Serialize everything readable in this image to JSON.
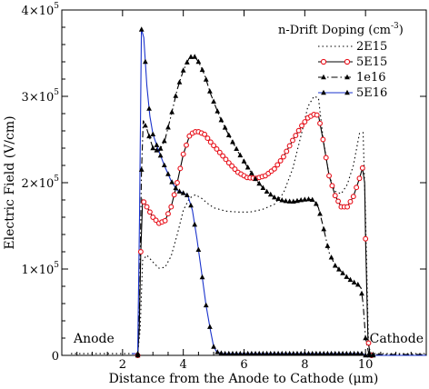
{
  "chart_data": {
    "type": "line",
    "xlabel": "Distance from the Anode to Cathode (μm)",
    "ylabel": "Electric Field (V/cm)",
    "xlim": [
      0,
      12
    ],
    "ylim": [
      0,
      400000
    ],
    "x_ticks": [
      2,
      4,
      6,
      8,
      10
    ],
    "y_ticks": [
      {
        "value": 0,
        "mantissa": "0",
        "exp": ""
      },
      {
        "value": 100000,
        "mantissa": "1×10",
        "exp": "5"
      },
      {
        "value": 200000,
        "mantissa": "2×10",
        "exp": "5"
      },
      {
        "value": 300000,
        "mantissa": "3×10",
        "exp": "5"
      },
      {
        "value": 400000,
        "mantissa": "4×10",
        "exp": "5"
      }
    ],
    "grid": false,
    "legend": {
      "title": "n-Drift Doping (cm",
      "title_sup": "-3",
      "title_close": ")",
      "position": "top-right"
    },
    "annotations": {
      "left": "Anode",
      "right": "Cathode"
    },
    "series": [
      {
        "name": "2E15",
        "color": "#000000",
        "dash": "1.5,3",
        "marker": "none",
        "points": [
          [
            0.3,
            2000
          ],
          [
            2.3,
            2000
          ],
          [
            2.5,
            2000
          ],
          [
            2.58,
            30000
          ],
          [
            2.66,
            110000
          ],
          [
            2.8,
            116000
          ],
          [
            3.0,
            108000
          ],
          [
            3.2,
            101000
          ],
          [
            3.4,
            102000
          ],
          [
            3.6,
            115000
          ],
          [
            3.8,
            140000
          ],
          [
            4.0,
            168000
          ],
          [
            4.2,
            182000
          ],
          [
            4.4,
            186000
          ],
          [
            4.6,
            182000
          ],
          [
            4.8,
            176000
          ],
          [
            5.0,
            171000
          ],
          [
            5.4,
            167000
          ],
          [
            5.8,
            166000
          ],
          [
            6.2,
            166000
          ],
          [
            6.6,
            169000
          ],
          [
            7.0,
            175000
          ],
          [
            7.3,
            188000
          ],
          [
            7.6,
            216000
          ],
          [
            7.9,
            258000
          ],
          [
            8.1,
            288000
          ],
          [
            8.3,
            300000
          ],
          [
            8.45,
            298000
          ],
          [
            8.6,
            252000
          ],
          [
            8.8,
            208000
          ],
          [
            9.0,
            190000
          ],
          [
            9.2,
            187000
          ],
          [
            9.4,
            198000
          ],
          [
            9.6,
            220000
          ],
          [
            9.8,
            257000
          ],
          [
            9.92,
            258000
          ],
          [
            10.0,
            160000
          ],
          [
            10.1,
            10000
          ],
          [
            10.2,
            2000
          ],
          [
            12.0,
            2000
          ]
        ]
      },
      {
        "name": "5E15",
        "color": "#000000",
        "dash": "",
        "marker": "circle",
        "points": [
          [
            2.3,
            0
          ],
          [
            2.5,
            0
          ],
          [
            2.55,
            30000
          ],
          [
            2.6,
            120000
          ],
          [
            2.66,
            180000
          ],
          [
            2.8,
            172000
          ],
          [
            3.0,
            160000
          ],
          [
            3.2,
            153000
          ],
          [
            3.4,
            156000
          ],
          [
            3.6,
            172000
          ],
          [
            3.8,
            200000
          ],
          [
            4.0,
            233000
          ],
          [
            4.2,
            254000
          ],
          [
            4.35,
            259000
          ],
          [
            4.5,
            259000
          ],
          [
            4.7,
            256000
          ],
          [
            4.9,
            247000
          ],
          [
            5.2,
            235000
          ],
          [
            5.5,
            223000
          ],
          [
            5.8,
            212000
          ],
          [
            6.1,
            206000
          ],
          [
            6.4,
            205000
          ],
          [
            6.7,
            208000
          ],
          [
            7.0,
            216000
          ],
          [
            7.3,
            230000
          ],
          [
            7.6,
            249000
          ],
          [
            7.9,
            266000
          ],
          [
            8.1,
            275000
          ],
          [
            8.3,
            279000
          ],
          [
            8.45,
            278000
          ],
          [
            8.6,
            250000
          ],
          [
            8.8,
            208000
          ],
          [
            9.0,
            185000
          ],
          [
            9.2,
            172000
          ],
          [
            9.4,
            172000
          ],
          [
            9.6,
            184000
          ],
          [
            9.8,
            205000
          ],
          [
            9.9,
            217000
          ],
          [
            9.97,
            200000
          ],
          [
            10.0,
            135000
          ],
          [
            10.08,
            20000
          ],
          [
            10.15,
            0
          ],
          [
            12.0,
            0
          ]
        ]
      },
      {
        "name": "1e16",
        "color": "#000000",
        "dash": "7,3,1.5,3",
        "marker": "triangle",
        "points": [
          [
            2.3,
            0
          ],
          [
            2.5,
            0
          ],
          [
            2.56,
            60000
          ],
          [
            2.62,
            210000
          ],
          [
            2.68,
            272000
          ],
          [
            2.8,
            262000
          ],
          [
            3.0,
            240000
          ],
          [
            3.2,
            236000
          ],
          [
            3.4,
            250000
          ],
          [
            3.6,
            278000
          ],
          [
            3.8,
            308000
          ],
          [
            4.0,
            330000
          ],
          [
            4.2,
            345000
          ],
          [
            4.35,
            347000
          ],
          [
            4.5,
            340000
          ],
          [
            4.7,
            325000
          ],
          [
            4.9,
            303000
          ],
          [
            5.2,
            276000
          ],
          [
            5.5,
            255000
          ],
          [
            5.8,
            236000
          ],
          [
            6.1,
            219000
          ],
          [
            6.4,
            203000
          ],
          [
            6.7,
            191000
          ],
          [
            7.0,
            183000
          ],
          [
            7.3,
            179000
          ],
          [
            7.6,
            178000
          ],
          [
            7.9,
            180000
          ],
          [
            8.1,
            181000
          ],
          [
            8.3,
            180000
          ],
          [
            8.45,
            171000
          ],
          [
            8.6,
            150000
          ],
          [
            8.8,
            119000
          ],
          [
            9.0,
            104000
          ],
          [
            9.2,
            97000
          ],
          [
            9.4,
            90000
          ],
          [
            9.6,
            85000
          ],
          [
            9.75,
            82000
          ],
          [
            9.85,
            78000
          ],
          [
            9.92,
            60000
          ],
          [
            10.0,
            20000
          ],
          [
            10.1,
            3000
          ],
          [
            10.2,
            1000
          ],
          [
            12.0,
            1000
          ]
        ]
      },
      {
        "name": "5E16",
        "color": "#1a33cc",
        "dash": "",
        "marker": "triangle",
        "points": [
          [
            2.3,
            2000
          ],
          [
            2.5,
            2000
          ],
          [
            2.56,
            160000
          ],
          [
            2.62,
            378000
          ],
          [
            2.7,
            368000
          ],
          [
            2.8,
            312000
          ],
          [
            2.9,
            277000
          ],
          [
            3.0,
            256000
          ],
          [
            3.2,
            236000
          ],
          [
            3.4,
            218000
          ],
          [
            3.6,
            202000
          ],
          [
            3.8,
            191000
          ],
          [
            4.0,
            188000
          ],
          [
            4.15,
            185000
          ],
          [
            4.3,
            168000
          ],
          [
            4.45,
            135000
          ],
          [
            4.6,
            97000
          ],
          [
            4.75,
            58000
          ],
          [
            4.9,
            28000
          ],
          [
            5.0,
            10000
          ],
          [
            5.1,
            4000
          ],
          [
            5.3,
            2000
          ],
          [
            6.0,
            2000
          ],
          [
            8.0,
            2000
          ],
          [
            9.9,
            2000
          ],
          [
            10.0,
            0
          ],
          [
            12.0,
            0
          ]
        ]
      }
    ]
  }
}
